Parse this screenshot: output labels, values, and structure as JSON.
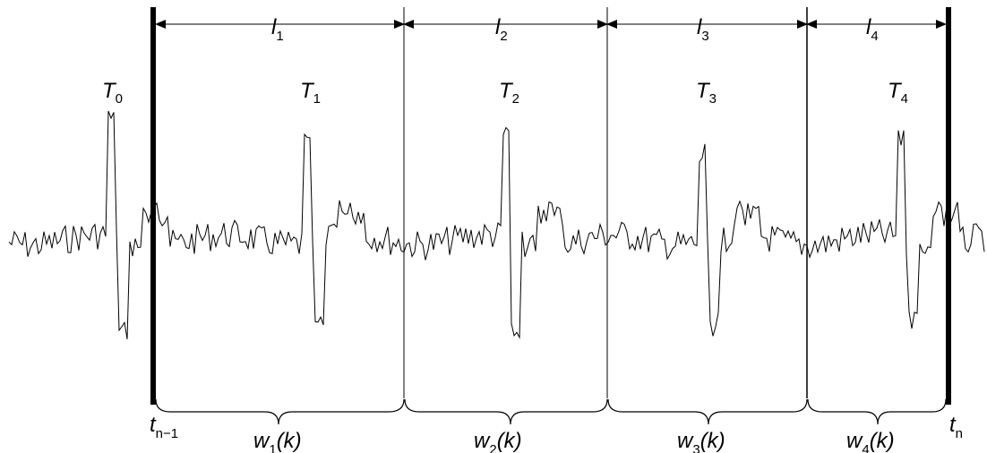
{
  "intervals": [
    {
      "length_label": "l",
      "length_sub": "1",
      "beat_label": "T",
      "beat_sub": "1",
      "window_label": "w",
      "window_sub": "1",
      "window_arg": "(k)"
    },
    {
      "length_label": "l",
      "length_sub": "2",
      "beat_label": "T",
      "beat_sub": "2",
      "window_label": "w",
      "window_sub": "2",
      "window_arg": "(k)"
    },
    {
      "length_label": "l",
      "length_sub": "3",
      "beat_label": "T",
      "beat_sub": "3",
      "window_label": "w",
      "window_sub": "3",
      "window_arg": "(k)"
    },
    {
      "length_label": "l",
      "length_sub": "4",
      "beat_label": "T",
      "beat_sub": "4",
      "window_label": "w",
      "window_sub": "4",
      "window_arg": "(k)"
    }
  ],
  "beat0": {
    "label": "T",
    "sub": "0"
  },
  "t_start": {
    "label": "t",
    "sub": "n−1"
  },
  "t_end": {
    "label": "t",
    "sub": "n"
  }
}
